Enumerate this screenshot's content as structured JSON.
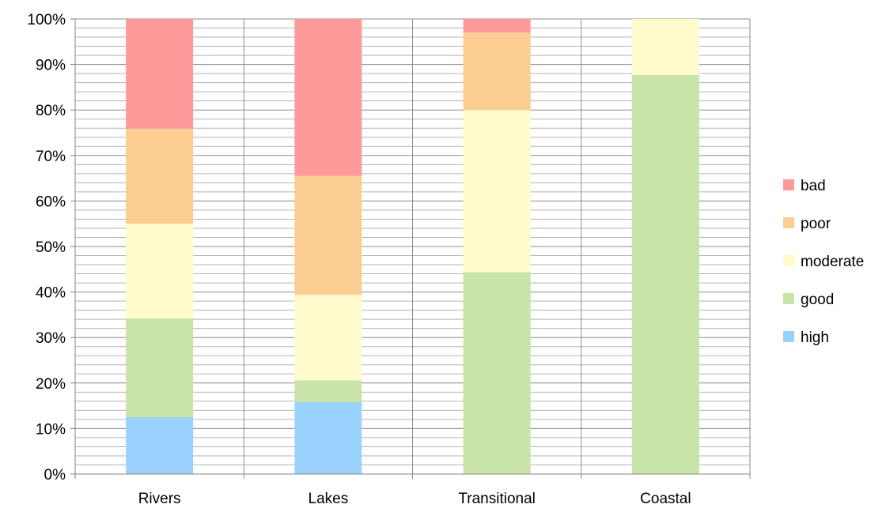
{
  "chart_data": {
    "type": "bar",
    "stacked": true,
    "percent_stacked": true,
    "categories": [
      "Rivers",
      "Lakes",
      "Transitional",
      "Coastal"
    ],
    "series": [
      {
        "name": "high",
        "color": "#99d3fd",
        "values": [
          12.5,
          15.8,
          0,
          0
        ]
      },
      {
        "name": "good",
        "color": "#c9e4a8",
        "values": [
          21.7,
          4.8,
          44.4,
          87.7
        ]
      },
      {
        "name": "moderate",
        "color": "#fffbcc",
        "values": [
          20.8,
          18.8,
          35.6,
          12.3
        ]
      },
      {
        "name": "poor",
        "color": "#fbcd91",
        "values": [
          20.9,
          26.1,
          17.0,
          0
        ]
      },
      {
        "name": "bad",
        "color": "#fe9a9a",
        "values": [
          24.1,
          34.5,
          3.0,
          0
        ]
      }
    ],
    "yticks": [
      "0%",
      "10%",
      "20%",
      "30%",
      "40%",
      "50%",
      "60%",
      "70%",
      "80%",
      "90%",
      "100%"
    ],
    "ylim": [
      0,
      100
    ],
    "grid": true,
    "legend_position": "right",
    "title": "",
    "xlabel": "",
    "ylabel": ""
  }
}
